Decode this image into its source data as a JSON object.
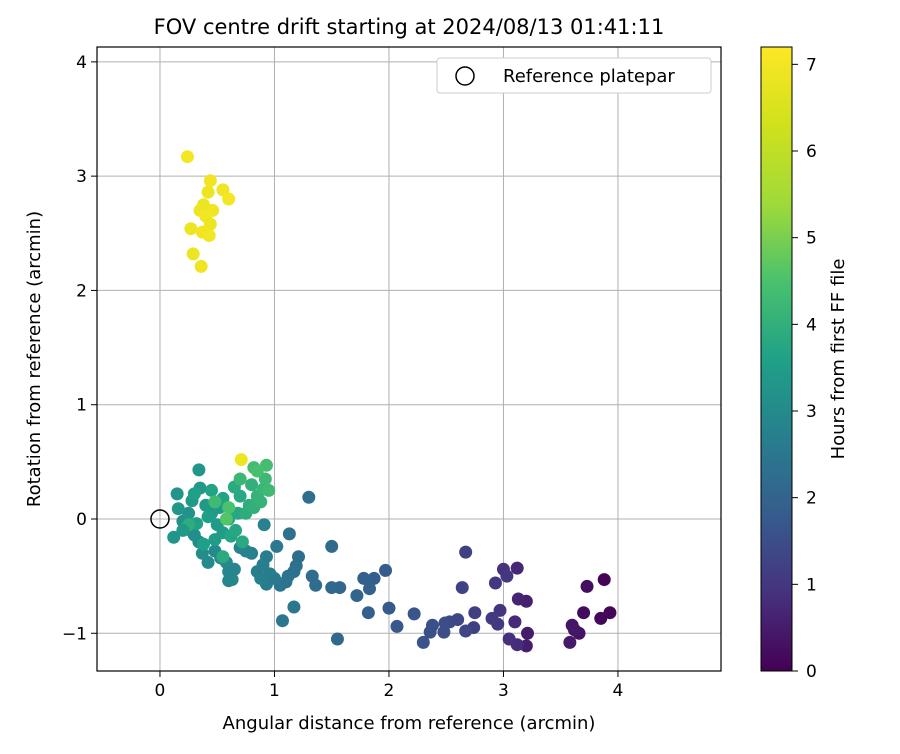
{
  "chart_data": {
    "type": "scatter",
    "title": "FOV centre drift starting at 2024/08/13 01:41:11",
    "xlabel": "Angular distance from reference (arcmin)",
    "ylabel": "Rotation from reference (arcmin)",
    "xlim": [
      -0.55,
      4.9
    ],
    "ylim": [
      -1.33,
      4.13
    ],
    "xticks": [
      0,
      1,
      2,
      3,
      4
    ],
    "xtick_labels": [
      "0",
      "1",
      "2",
      "3",
      "4"
    ],
    "yticks": [
      -1,
      0,
      1,
      2,
      3,
      4
    ],
    "ytick_labels": [
      "−1",
      "0",
      "1",
      "2",
      "3",
      "4"
    ],
    "grid": true,
    "legend": {
      "placement": "top-right",
      "entries": [
        "Reference platepar"
      ]
    },
    "reference_point": {
      "x": 0,
      "y": 0
    },
    "colorbar": {
      "label": "Hours from first FF file",
      "range": [
        0,
        7.2
      ],
      "ticks": [
        0,
        1,
        2,
        3,
        4,
        5,
        6,
        7
      ],
      "tick_labels": [
        "0",
        "1",
        "2",
        "3",
        "4",
        "5",
        "6",
        "7"
      ],
      "colormap": "viridis"
    },
    "points": [
      {
        "x": 3.88,
        "y": -0.53,
        "c": 0.05
      },
      {
        "x": 3.93,
        "y": -0.82,
        "c": 0.1
      },
      {
        "x": 3.85,
        "y": -0.87,
        "c": 0.12
      },
      {
        "x": 3.7,
        "y": -0.82,
        "c": 0.2
      },
      {
        "x": 3.73,
        "y": -0.59,
        "c": 0.25
      },
      {
        "x": 3.66,
        "y": -1.0,
        "c": 0.3
      },
      {
        "x": 3.6,
        "y": -0.93,
        "c": 0.35
      },
      {
        "x": 3.62,
        "y": -0.97,
        "c": 0.4
      },
      {
        "x": 3.58,
        "y": -1.08,
        "c": 0.45
      },
      {
        "x": 3.21,
        "y": -1.0,
        "c": 0.5
      },
      {
        "x": 3.2,
        "y": -1.11,
        "c": 0.55
      },
      {
        "x": 3.2,
        "y": -0.72,
        "c": 0.6
      },
      {
        "x": 3.13,
        "y": -0.7,
        "c": 0.65
      },
      {
        "x": 3.12,
        "y": -0.43,
        "c": 0.7
      },
      {
        "x": 3.1,
        "y": -0.9,
        "c": 0.75
      },
      {
        "x": 3.12,
        "y": -1.1,
        "c": 0.8
      },
      {
        "x": 3.05,
        "y": -1.05,
        "c": 0.85
      },
      {
        "x": 3.0,
        "y": -0.44,
        "c": 0.9
      },
      {
        "x": 2.97,
        "y": -0.8,
        "c": 0.95
      },
      {
        "x": 2.93,
        "y": -0.56,
        "c": 1.0
      },
      {
        "x": 3.03,
        "y": -0.5,
        "c": 1.0
      },
      {
        "x": 2.95,
        "y": -0.92,
        "c": 1.05
      },
      {
        "x": 2.9,
        "y": -0.87,
        "c": 1.1
      },
      {
        "x": 2.75,
        "y": -0.82,
        "c": 1.15
      },
      {
        "x": 2.74,
        "y": -0.95,
        "c": 1.2
      },
      {
        "x": 2.67,
        "y": -0.29,
        "c": 1.2
      },
      {
        "x": 2.64,
        "y": -0.6,
        "c": 1.25
      },
      {
        "x": 2.67,
        "y": -0.98,
        "c": 1.3
      },
      {
        "x": 2.6,
        "y": -0.88,
        "c": 1.35
      },
      {
        "x": 2.53,
        "y": -0.9,
        "c": 1.4
      },
      {
        "x": 2.49,
        "y": -0.91,
        "c": 1.45
      },
      {
        "x": 2.48,
        "y": -0.99,
        "c": 1.5
      },
      {
        "x": 2.38,
        "y": -0.93,
        "c": 1.55
      },
      {
        "x": 2.36,
        "y": -0.99,
        "c": 1.55
      },
      {
        "x": 2.3,
        "y": -1.08,
        "c": 1.6
      },
      {
        "x": 2.22,
        "y": -0.83,
        "c": 1.65
      },
      {
        "x": 2.07,
        "y": -0.94,
        "c": 1.7
      },
      {
        "x": 2.0,
        "y": -0.78,
        "c": 1.75
      },
      {
        "x": 1.97,
        "y": -0.45,
        "c": 1.8
      },
      {
        "x": 1.87,
        "y": -0.52,
        "c": 1.85
      },
      {
        "x": 1.82,
        "y": -0.82,
        "c": 1.9
      },
      {
        "x": 1.78,
        "y": -0.52,
        "c": 1.9
      },
      {
        "x": 1.83,
        "y": -0.61,
        "c": 1.95
      },
      {
        "x": 1.72,
        "y": -0.67,
        "c": 2.0
      },
      {
        "x": 1.57,
        "y": -0.6,
        "c": 2.05
      },
      {
        "x": 1.5,
        "y": -0.6,
        "c": 2.1
      },
      {
        "x": 1.55,
        "y": -1.05,
        "c": 2.1
      },
      {
        "x": 1.5,
        "y": -0.24,
        "c": 2.15
      },
      {
        "x": 1.36,
        "y": -0.58,
        "c": 2.2
      },
      {
        "x": 1.33,
        "y": -0.5,
        "c": 2.2
      },
      {
        "x": 1.3,
        "y": 0.19,
        "c": 2.25
      },
      {
        "x": 1.21,
        "y": -0.33,
        "c": 2.3
      },
      {
        "x": 1.19,
        "y": -0.41,
        "c": 2.3
      },
      {
        "x": 1.17,
        "y": -0.46,
        "c": 2.35
      },
      {
        "x": 1.13,
        "y": -0.13,
        "c": 2.35
      },
      {
        "x": 1.12,
        "y": -0.5,
        "c": 2.4
      },
      {
        "x": 1.1,
        "y": -0.55,
        "c": 2.4
      },
      {
        "x": 1.05,
        "y": -0.58,
        "c": 2.45
      },
      {
        "x": 1.07,
        "y": -0.89,
        "c": 2.5
      },
      {
        "x": 1.17,
        "y": -0.77,
        "c": 2.5
      },
      {
        "x": 1.02,
        "y": -0.24,
        "c": 2.55
      },
      {
        "x": 1.0,
        "y": -0.52,
        "c": 2.55
      },
      {
        "x": 0.96,
        "y": -0.48,
        "c": 2.6
      },
      {
        "x": 0.93,
        "y": -0.57,
        "c": 2.6
      },
      {
        "x": 0.93,
        "y": -0.33,
        "c": 2.65
      },
      {
        "x": 0.9,
        "y": -0.4,
        "c": 2.65
      },
      {
        "x": 0.88,
        "y": -0.52,
        "c": 2.7
      },
      {
        "x": 0.85,
        "y": -0.46,
        "c": 2.7
      },
      {
        "x": 0.91,
        "y": -0.05,
        "c": 2.75
      },
      {
        "x": 0.8,
        "y": -0.3,
        "c": 2.75
      },
      {
        "x": 0.75,
        "y": -0.28,
        "c": 2.8
      },
      {
        "x": 0.7,
        "y": -0.25,
        "c": 2.8
      },
      {
        "x": 0.65,
        "y": -0.44,
        "c": 2.85
      },
      {
        "x": 0.6,
        "y": -0.46,
        "c": 2.85
      },
      {
        "x": 0.6,
        "y": -0.54,
        "c": 2.9
      },
      {
        "x": 0.63,
        "y": -0.53,
        "c": 2.9
      },
      {
        "x": 0.58,
        "y": -0.38,
        "c": 2.95
      },
      {
        "x": 0.53,
        "y": -0.34,
        "c": 2.95
      },
      {
        "x": 0.48,
        "y": -0.28,
        "c": 3.0
      },
      {
        "x": 0.42,
        "y": -0.38,
        "c": 3.0
      },
      {
        "x": 0.37,
        "y": -0.3,
        "c": 3.05
      },
      {
        "x": 0.34,
        "y": -0.2,
        "c": 3.05
      },
      {
        "x": 0.3,
        "y": -0.14,
        "c": 3.1
      },
      {
        "x": 0.27,
        "y": -0.1,
        "c": 3.1
      },
      {
        "x": 0.22,
        "y": -0.06,
        "c": 3.15
      },
      {
        "x": 0.2,
        "y": -0.02,
        "c": 3.15
      },
      {
        "x": 0.25,
        "y": 0.05,
        "c": 3.2
      },
      {
        "x": 0.12,
        "y": -0.16,
        "c": 3.25
      },
      {
        "x": 0.15,
        "y": 0.22,
        "c": 3.25
      },
      {
        "x": 0.16,
        "y": 0.09,
        "c": 3.3
      },
      {
        "x": 0.34,
        "y": 0.43,
        "c": 3.3
      },
      {
        "x": 0.28,
        "y": 0.16,
        "c": 3.35
      },
      {
        "x": 0.35,
        "y": 0.27,
        "c": 3.35
      },
      {
        "x": 0.4,
        "y": 0.12,
        "c": 3.4
      },
      {
        "x": 0.45,
        "y": 0.05,
        "c": 3.4
      },
      {
        "x": 0.5,
        "y": -0.05,
        "c": 3.45
      },
      {
        "x": 0.52,
        "y": 0.1,
        "c": 3.45
      },
      {
        "x": 0.55,
        "y": -0.12,
        "c": 3.5
      },
      {
        "x": 0.48,
        "y": -0.18,
        "c": 3.5
      },
      {
        "x": 0.42,
        "y": 0.02,
        "c": 3.55
      },
      {
        "x": 0.38,
        "y": -0.22,
        "c": 3.55
      },
      {
        "x": 0.32,
        "y": -0.04,
        "c": 3.6
      },
      {
        "x": 0.3,
        "y": 0.22,
        "c": 3.6
      },
      {
        "x": 0.45,
        "y": 0.25,
        "c": 3.65
      },
      {
        "x": 0.55,
        "y": 0.18,
        "c": 3.65
      },
      {
        "x": 0.6,
        "y": 0.0,
        "c": 3.7
      },
      {
        "x": 0.62,
        "y": -0.15,
        "c": 3.7
      },
      {
        "x": 0.66,
        "y": -0.1,
        "c": 3.75
      },
      {
        "x": 0.68,
        "y": 0.05,
        "c": 3.75
      },
      {
        "x": 0.7,
        "y": 0.2,
        "c": 3.8
      },
      {
        "x": 0.72,
        "y": -0.2,
        "c": 3.8
      },
      {
        "x": 0.55,
        "y": -0.33,
        "c": 3.85
      },
      {
        "x": 0.65,
        "y": 0.28,
        "c": 3.85
      },
      {
        "x": 0.75,
        "y": 0.05,
        "c": 3.9
      },
      {
        "x": 0.78,
        "y": 0.12,
        "c": 3.95
      },
      {
        "x": 0.8,
        "y": 0.3,
        "c": 4.0
      },
      {
        "x": 0.82,
        "y": 0.1,
        "c": 4.0
      },
      {
        "x": 0.85,
        "y": 0.2,
        "c": 4.05
      },
      {
        "x": 0.88,
        "y": 0.15,
        "c": 4.1
      },
      {
        "x": 0.9,
        "y": 0.26,
        "c": 4.15
      },
      {
        "x": 0.7,
        "y": 0.35,
        "c": 4.2
      },
      {
        "x": 0.92,
        "y": 0.35,
        "c": 4.25
      },
      {
        "x": 0.95,
        "y": 0.25,
        "c": 4.3
      },
      {
        "x": 0.82,
        "y": 0.45,
        "c": 4.35
      },
      {
        "x": 0.93,
        "y": 0.47,
        "c": 4.4
      },
      {
        "x": 0.85,
        "y": 0.42,
        "c": 4.45
      },
      {
        "x": 0.6,
        "y": 0.1,
        "c": 4.5
      },
      {
        "x": 0.58,
        "y": 0.0,
        "c": 4.6
      },
      {
        "x": 0.48,
        "y": 0.15,
        "c": 4.3
      },
      {
        "x": 0.25,
        "y": -0.05,
        "c": 3.9
      },
      {
        "x": 0.2,
        "y": -0.1,
        "c": 3.4
      },
      {
        "x": 0.71,
        "y": 0.52,
        "c": 6.9
      },
      {
        "x": 0.24,
        "y": 3.17,
        "c": 7.0
      },
      {
        "x": 0.44,
        "y": 2.96,
        "c": 6.95
      },
      {
        "x": 0.42,
        "y": 2.86,
        "c": 6.9
      },
      {
        "x": 0.55,
        "y": 2.88,
        "c": 6.95
      },
      {
        "x": 0.6,
        "y": 2.8,
        "c": 7.0
      },
      {
        "x": 0.38,
        "y": 2.75,
        "c": 6.85
      },
      {
        "x": 0.35,
        "y": 2.7,
        "c": 6.9
      },
      {
        "x": 0.46,
        "y": 2.7,
        "c": 6.95
      },
      {
        "x": 0.4,
        "y": 2.65,
        "c": 7.0
      },
      {
        "x": 0.44,
        "y": 2.58,
        "c": 6.85
      },
      {
        "x": 0.27,
        "y": 2.54,
        "c": 6.9
      },
      {
        "x": 0.37,
        "y": 2.51,
        "c": 6.95
      },
      {
        "x": 0.43,
        "y": 2.48,
        "c": 7.0
      },
      {
        "x": 0.29,
        "y": 2.32,
        "c": 6.9
      },
      {
        "x": 0.36,
        "y": 2.21,
        "c": 6.95
      }
    ]
  }
}
